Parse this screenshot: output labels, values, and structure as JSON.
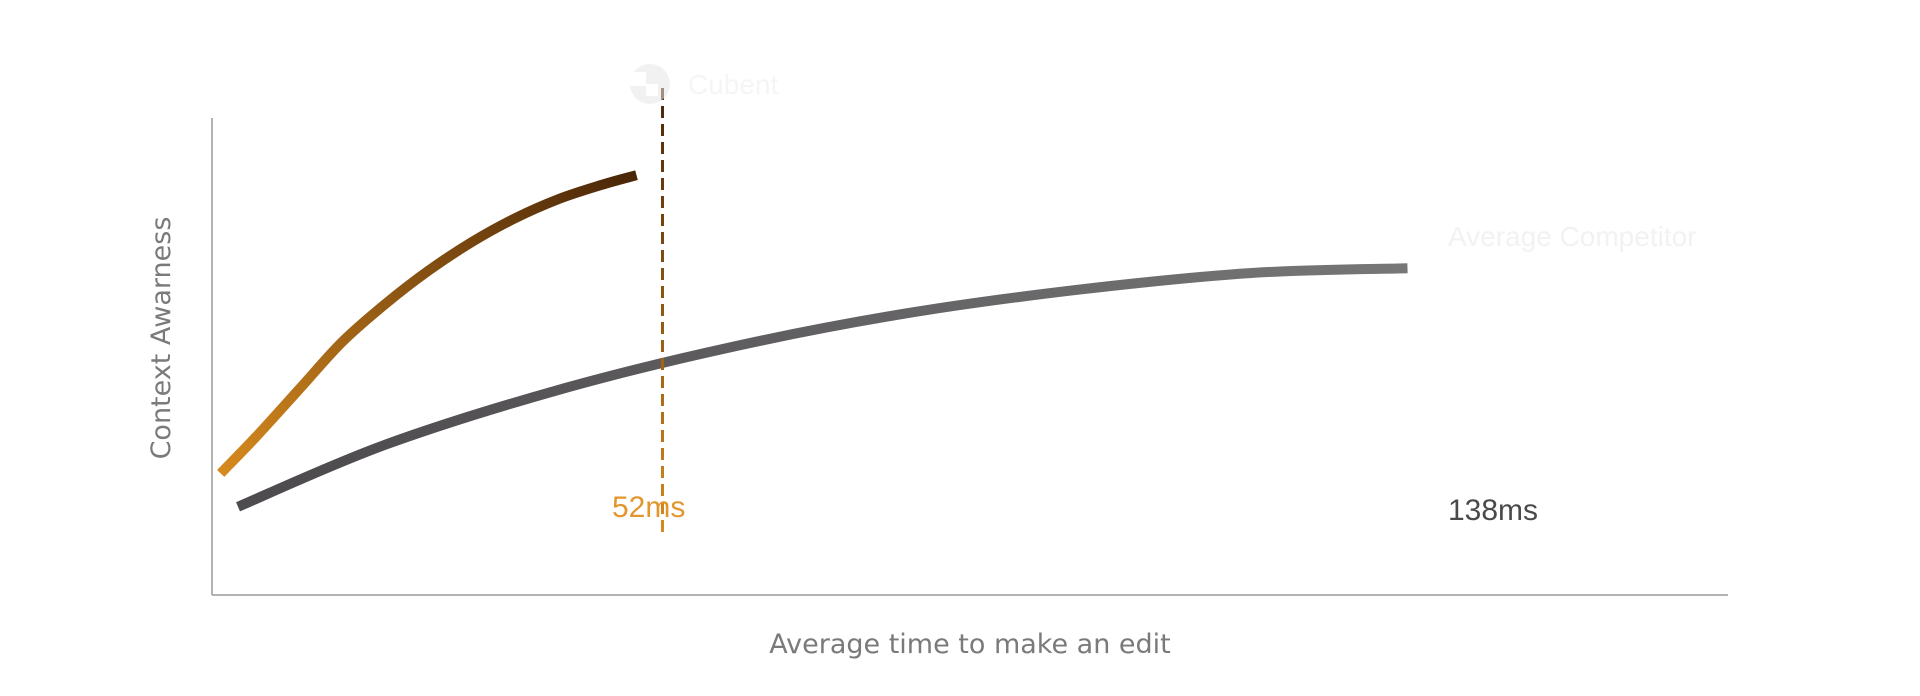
{
  "chart_data": {
    "type": "line",
    "title": "",
    "xlabel": "Average time to make an edit",
    "ylabel": "Context Awarness",
    "xlim": [
      0,
      175
    ],
    "ylim": [
      0,
      1
    ],
    "grid": false,
    "legend": "inline labels at series ends",
    "series": [
      {
        "name": "Cubent",
        "points": [
          [
            1,
            0.255
          ],
          [
            5,
            0.33
          ],
          [
            10,
            0.43
          ],
          [
            15,
            0.53
          ],
          [
            20,
            0.61
          ],
          [
            25,
            0.68
          ],
          [
            30,
            0.74
          ],
          [
            35,
            0.79
          ],
          [
            40,
            0.83
          ],
          [
            45,
            0.86
          ],
          [
            49,
            0.88
          ]
        ],
        "marker_value": 52,
        "marker_label": "52ms",
        "gradient": [
          "#d68a1e",
          "#4a2608"
        ]
      },
      {
        "name": "Average Competitor",
        "points": [
          [
            3,
            0.185
          ],
          [
            20,
            0.315
          ],
          [
            40,
            0.43
          ],
          [
            60,
            0.52
          ],
          [
            80,
            0.59
          ],
          [
            100,
            0.64
          ],
          [
            120,
            0.675
          ],
          [
            138,
            0.685
          ]
        ],
        "end_label": "138ms",
        "gradient": [
          "#4f4c50",
          "#777777"
        ]
      }
    ]
  },
  "colors": {
    "axis": "#9a9a9a",
    "cubent_label": "#e3962c",
    "competitor_label": "#4a4a4a",
    "faint_legend": "#f2f2f2"
  },
  "icons": {
    "cubent_logo": "cubent-logo-icon"
  }
}
